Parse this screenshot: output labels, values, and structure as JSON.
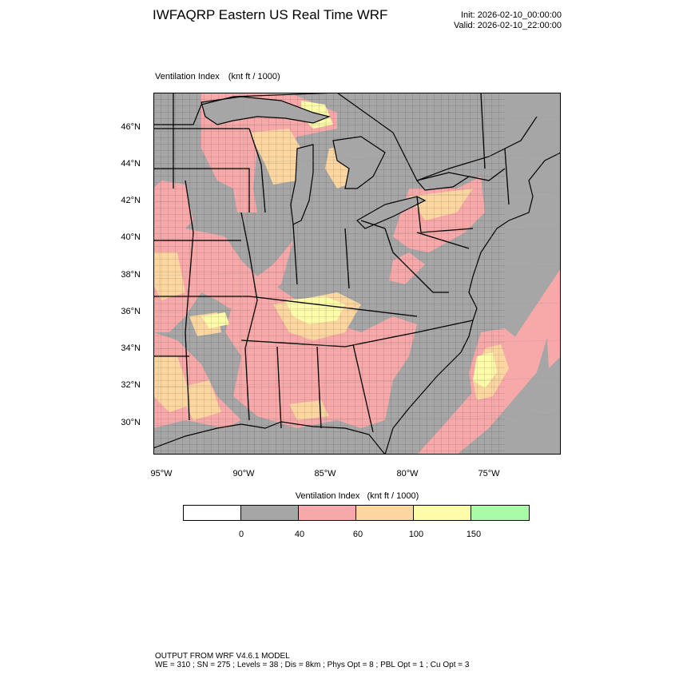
{
  "header": {
    "title": "IWFAQRP Eastern US Real Time WRF",
    "init": "Init: 2026-02-10_00:00:00",
    "valid": "Valid: 2026-02-10_22:00:00"
  },
  "field": {
    "name": "Ventilation Index",
    "units": "(knt ft / 1000)"
  },
  "map": {
    "lat_labels": [
      "46°N",
      "44°N",
      "42°N",
      "40°N",
      "38°N",
      "36°N",
      "34°N",
      "32°N",
      "30°N"
    ],
    "lon_labels": [
      "95°W",
      "90°W",
      "85°W",
      "80°W",
      "75°W"
    ],
    "colors": {
      "ocean": "#a6a6a6",
      "land_bg": "#a6a6a6",
      "pink": "#f7a8a8",
      "orange": "#fbd6a0",
      "yellow": "#fdfca8",
      "boundary": "#000000"
    }
  },
  "colorbar": {
    "title": "Ventilation Index",
    "units": "(knt ft / 1000)",
    "colors": [
      "#ffffff",
      "#a6a6a6",
      "#f7a8a8",
      "#fbd6a0",
      "#fdfca8",
      "#a8fca8"
    ],
    "ticks": [
      "0",
      "40",
      "60",
      "100",
      "150"
    ]
  },
  "footer": {
    "line1": "OUTPUT FROM WRF V4.6.1 MODEL",
    "line2": "WE = 310 ; SN = 275 ; Levels = 38 ; Dis = 8km ; Phys Opt = 8 ; PBL Opt = 1 ; Cu Opt = 3"
  }
}
